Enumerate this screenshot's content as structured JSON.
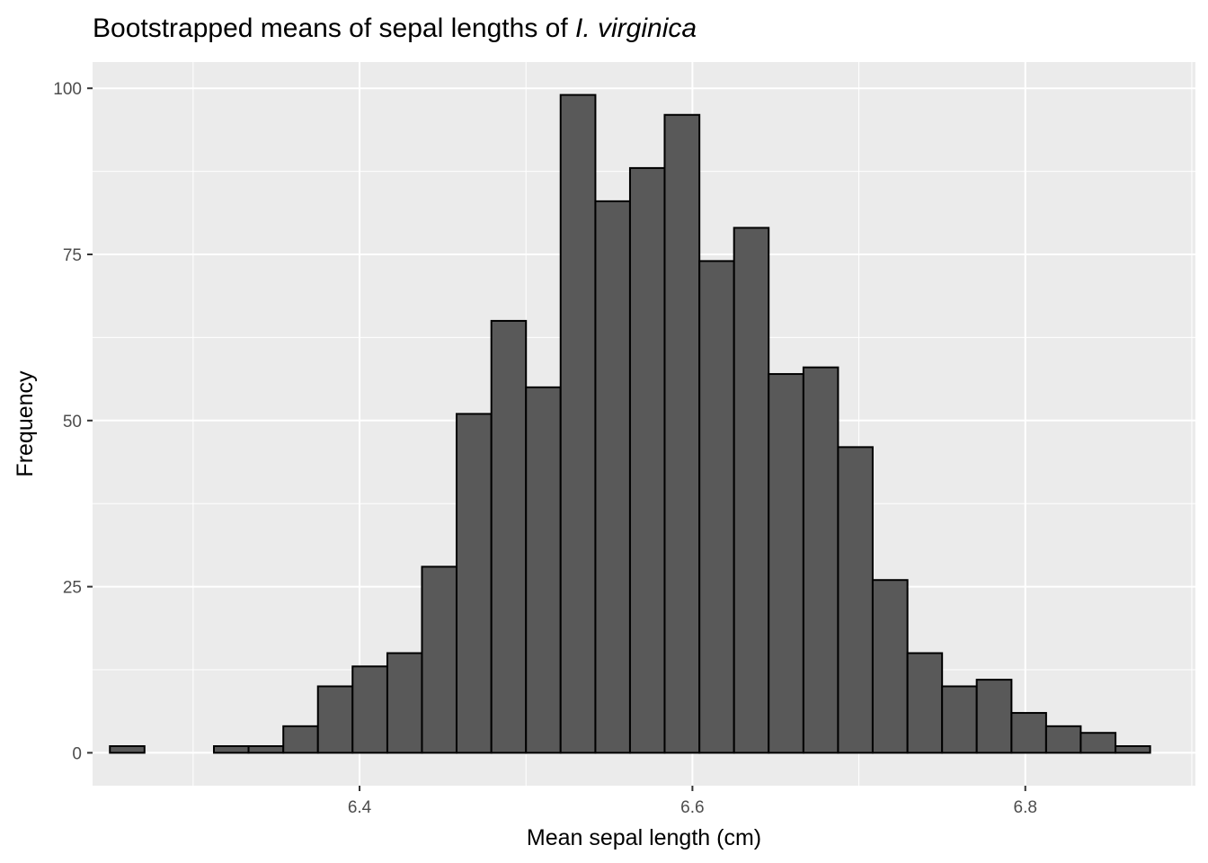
{
  "chart_data": {
    "type": "bar",
    "title_parts": {
      "prefix": "Bootstrapped means of sepal lengths of ",
      "italic": "I. virginica"
    },
    "xlabel": "Mean sepal length (cm)",
    "ylabel": "Frequency",
    "xlim": [
      6.2396,
      6.9022
    ],
    "ylim": [
      -4.95,
      103.95
    ],
    "x_ticks": [
      6.4,
      6.6,
      6.8
    ],
    "x_tick_labels": [
      "6.4",
      "6.6",
      "6.8"
    ],
    "x_minor_ticks": [
      6.3,
      6.5,
      6.7,
      6.9
    ],
    "y_ticks": [
      0,
      25,
      50,
      75,
      100
    ],
    "y_tick_labels": [
      "0",
      "25",
      "50",
      "75",
      "100"
    ],
    "y_minor_ticks": [
      12.5,
      37.5,
      62.5,
      87.5
    ],
    "grid": true,
    "bin_width": 0.0208,
    "bins": [
      {
        "x_start": 6.25,
        "x_end": 6.2708,
        "count": 1
      },
      {
        "x_start": 6.2708,
        "x_end": 6.2917,
        "count": 0
      },
      {
        "x_start": 6.2917,
        "x_end": 6.3125,
        "count": 0
      },
      {
        "x_start": 6.3125,
        "x_end": 6.3333,
        "count": 1
      },
      {
        "x_start": 6.3333,
        "x_end": 6.3542,
        "count": 1
      },
      {
        "x_start": 6.3542,
        "x_end": 6.375,
        "count": 4
      },
      {
        "x_start": 6.375,
        "x_end": 6.3958,
        "count": 10
      },
      {
        "x_start": 6.3958,
        "x_end": 6.4167,
        "count": 13
      },
      {
        "x_start": 6.4167,
        "x_end": 6.4375,
        "count": 15
      },
      {
        "x_start": 6.4375,
        "x_end": 6.4583,
        "count": 28
      },
      {
        "x_start": 6.4583,
        "x_end": 6.4792,
        "count": 51
      },
      {
        "x_start": 6.4792,
        "x_end": 6.5,
        "count": 65
      },
      {
        "x_start": 6.5,
        "x_end": 6.5208,
        "count": 55
      },
      {
        "x_start": 6.5208,
        "x_end": 6.5417,
        "count": 99
      },
      {
        "x_start": 6.5417,
        "x_end": 6.5625,
        "count": 83
      },
      {
        "x_start": 6.5625,
        "x_end": 6.5833,
        "count": 88
      },
      {
        "x_start": 6.5833,
        "x_end": 6.6042,
        "count": 96
      },
      {
        "x_start": 6.6042,
        "x_end": 6.625,
        "count": 74
      },
      {
        "x_start": 6.625,
        "x_end": 6.6458,
        "count": 79
      },
      {
        "x_start": 6.6458,
        "x_end": 6.6667,
        "count": 57
      },
      {
        "x_start": 6.6667,
        "x_end": 6.6875,
        "count": 58
      },
      {
        "x_start": 6.6875,
        "x_end": 6.7083,
        "count": 46
      },
      {
        "x_start": 6.7083,
        "x_end": 6.7292,
        "count": 26
      },
      {
        "x_start": 6.7292,
        "x_end": 6.75,
        "count": 15
      },
      {
        "x_start": 6.75,
        "x_end": 6.7708,
        "count": 10
      },
      {
        "x_start": 6.7708,
        "x_end": 6.7917,
        "count": 11
      },
      {
        "x_start": 6.7917,
        "x_end": 6.8125,
        "count": 6
      },
      {
        "x_start": 6.8125,
        "x_end": 6.8333,
        "count": 4
      },
      {
        "x_start": 6.8333,
        "x_end": 6.8542,
        "count": 3
      },
      {
        "x_start": 6.8542,
        "x_end": 6.875,
        "count": 1
      }
    ],
    "colors": {
      "panel_background": "#ebebeb",
      "grid": "#ffffff",
      "bar_fill": "#595959",
      "bar_outline": "#000000",
      "tick_text": "#4d4d4d",
      "tick_mark": "#333333",
      "title_text": "#000000"
    }
  }
}
